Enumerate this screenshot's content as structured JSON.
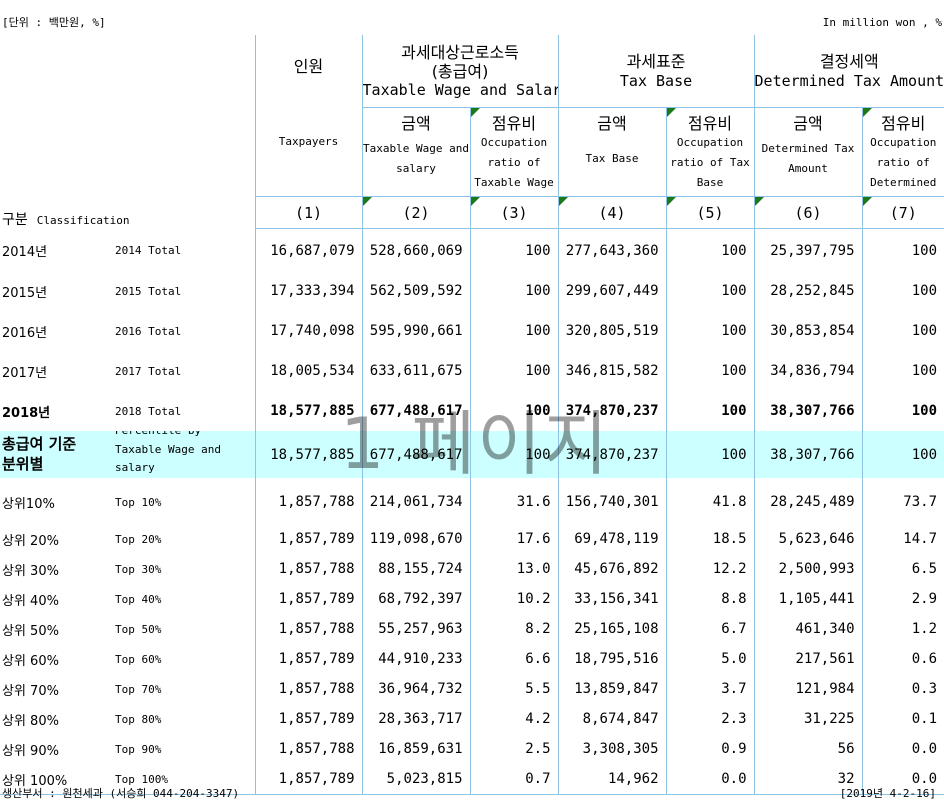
{
  "unit_left": "[단위 : 백만원, %]",
  "unit_right": "In million won , %",
  "headers": {
    "taxpayers_ko": "인원",
    "taxpayers_en": "Taxpayers",
    "wage_ko1": "과세대상근로소득",
    "wage_ko2": "(총급여)",
    "wage_en": "Taxable Wage and Salary",
    "base_ko": "과세표준",
    "base_en": "Tax Base",
    "det_ko": "결정세액",
    "det_en": "Determined Tax Amount",
    "amount_ko": "금액",
    "ratio_ko": "점유비",
    "wage_amt_en1": "Taxable Wage and",
    "wage_amt_en2": "salary",
    "wage_ratio_en1": "Occupation",
    "wage_ratio_en2": "ratio of",
    "wage_ratio_en3": "Taxable Wage",
    "base_amt_en": "Tax Base",
    "base_ratio_en1": "Occupation",
    "base_ratio_en2": "ratio of Tax",
    "base_ratio_en3": "Base",
    "det_amt_en1": "Determined Tax",
    "det_amt_en2": "Amount",
    "det_ratio_en1": "Occupation",
    "det_ratio_en2": "ratio of",
    "det_ratio_en3": "Determined",
    "class_ko": "구분",
    "class_en": "Classification",
    "col_nums": [
      "(1)",
      "(2)",
      "(3)",
      "(4)",
      "(5)",
      "(6)",
      "(7)"
    ]
  },
  "years": [
    {
      "ko": "2014년",
      "en": "2014 Total",
      "v": [
        "16,687,079",
        "528,660,069",
        "100",
        "277,643,360",
        "100",
        "25,397,795",
        "100"
      ]
    },
    {
      "ko": "2015년",
      "en": "2015 Total",
      "v": [
        "17,333,394",
        "562,509,592",
        "100",
        "299,607,449",
        "100",
        "28,252,845",
        "100"
      ]
    },
    {
      "ko": "2016년",
      "en": "2016 Total",
      "v": [
        "17,740,098",
        "595,990,661",
        "100",
        "320,805,519",
        "100",
        "30,853,854",
        "100"
      ]
    },
    {
      "ko": "2017년",
      "en": "2017 Total",
      "v": [
        "18,005,534",
        "633,611,675",
        "100",
        "346,815,582",
        "100",
        "34,836,794",
        "100"
      ]
    },
    {
      "ko": "2018년",
      "en": "2018 Total",
      "v": [
        "18,577,885",
        "677,488,617",
        "100",
        "374,870,237",
        "100",
        "38,307,766",
        "100"
      ]
    }
  ],
  "highlight": {
    "ko1": "총급여 기준",
    "ko2": "분위별",
    "en1": "Percentile by",
    "en2": "Taxable Wage and",
    "en3": "salary",
    "v": [
      "18,577,885",
      "677,488,617",
      "100",
      "374,870,237",
      "100",
      "38,307,766",
      "100"
    ]
  },
  "tops": [
    {
      "ko": "상위10%",
      "en": "Top 10%",
      "v": [
        "1,857,788",
        "214,061,734",
        "31.6",
        "156,740,301",
        "41.8",
        "28,245,489",
        "73.7"
      ]
    },
    {
      "ko": "상위 20%",
      "en": "Top 20%",
      "v": [
        "1,857,789",
        "119,098,670",
        "17.6",
        "69,478,119",
        "18.5",
        "5,623,646",
        "14.7"
      ]
    },
    {
      "ko": "상위 30%",
      "en": "Top 30%",
      "v": [
        "1,857,788",
        "88,155,724",
        "13.0",
        "45,676,892",
        "12.2",
        "2,500,993",
        "6.5"
      ]
    },
    {
      "ko": "상위 40%",
      "en": "Top 40%",
      "v": [
        "1,857,789",
        "68,792,397",
        "10.2",
        "33,156,341",
        "8.8",
        "1,105,441",
        "2.9"
      ]
    },
    {
      "ko": "상위 50%",
      "en": "Top 50%",
      "v": [
        "1,857,788",
        "55,257,963",
        "8.2",
        "25,165,108",
        "6.7",
        "461,340",
        "1.2"
      ]
    },
    {
      "ko": "상위 60%",
      "en": "Top 60%",
      "v": [
        "1,857,789",
        "44,910,233",
        "6.6",
        "18,795,516",
        "5.0",
        "217,561",
        "0.6"
      ]
    },
    {
      "ko": "상위 70%",
      "en": "Top 70%",
      "v": [
        "1,857,788",
        "36,964,732",
        "5.5",
        "13,859,847",
        "3.7",
        "121,984",
        "0.3"
      ]
    },
    {
      "ko": "상위 80%",
      "en": "Top 80%",
      "v": [
        "1,857,789",
        "28,363,717",
        "4.2",
        "8,674,847",
        "2.3",
        "31,225",
        "0.1"
      ]
    },
    {
      "ko": "상위 90%",
      "en": "Top 90%",
      "v": [
        "1,857,788",
        "16,859,631",
        "2.5",
        "3,308,305",
        "0.9",
        "56",
        "0.0"
      ]
    },
    {
      "ko": "상위 100%",
      "en": "Top 100%",
      "v": [
        "1,857,789",
        "5,023,815",
        "0.7",
        "14,962",
        "0.0",
        "32",
        "0.0"
      ]
    }
  ],
  "watermark": "1 페이지",
  "footer_left": "생산부서 : 원천세과 (서승희 044-204-3347)",
  "footer_right": "[2019년 4-2-16]"
}
